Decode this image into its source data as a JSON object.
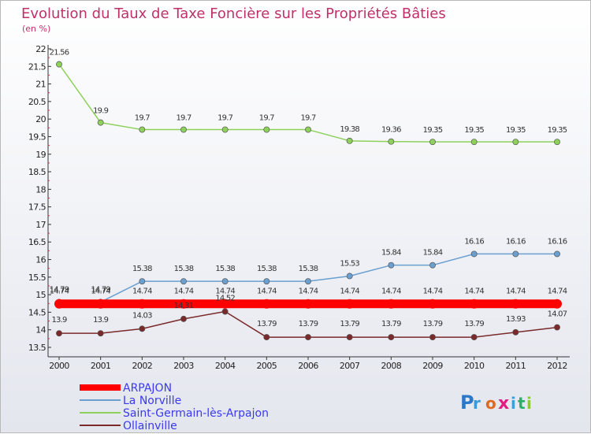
{
  "chart_data": {
    "type": "line",
    "title": "Evolution du Taux de Taxe Foncière sur les Propriétés Bâties",
    "subtitle": "(en %)",
    "xlabel": "",
    "ylabel": "",
    "x": [
      "2000",
      "2001",
      "2002",
      "2003",
      "2004",
      "2005",
      "2006",
      "2007",
      "2008",
      "2009",
      "2010",
      "2011",
      "2012"
    ],
    "ylim": [
      13.5,
      22
    ],
    "yticks": [
      "13.5",
      "14",
      "14.5",
      "15",
      "15.5",
      "16",
      "16.5",
      "17",
      "17.5",
      "18",
      "18.5",
      "19",
      "19.5",
      "20",
      "20.5",
      "21",
      "21.5",
      "22"
    ],
    "series": [
      {
        "name": "ARPAJON",
        "color": "#ff0000",
        "values": [
          14.74,
          14.74,
          14.74,
          14.74,
          14.74,
          14.74,
          14.74,
          14.74,
          14.74,
          14.74,
          14.74,
          14.74,
          14.74
        ],
        "labels": [
          "14.74",
          "14.74",
          "14.74",
          "14.74",
          "14.74",
          "14.74",
          "14.74",
          "14.74",
          "14.74",
          "14.74",
          "14.74",
          "14.74",
          "14.74"
        ]
      },
      {
        "name": "La Norville",
        "color": "#6a9fd0",
        "values": [
          14.79,
          14.79,
          15.38,
          15.38,
          15.38,
          15.38,
          15.38,
          15.53,
          15.84,
          15.84,
          16.16,
          16.16,
          16.16
        ],
        "labels": [
          "14.79",
          "14.79",
          "15.38",
          "15.38",
          "15.38",
          "15.38",
          "15.38",
          "15.53",
          "15.84",
          "15.84",
          "16.16",
          "16.16",
          "16.16"
        ]
      },
      {
        "name": "Saint-Germain-lès-Arpajon",
        "color": "#8ed15a",
        "values": [
          21.56,
          19.9,
          19.7,
          19.7,
          19.7,
          19.7,
          19.7,
          19.38,
          19.36,
          19.35,
          19.35,
          19.35,
          19.35
        ],
        "labels": [
          "21.56",
          "19.9",
          "19.7",
          "19.7",
          "19.7",
          "19.7",
          "19.7",
          "19.38",
          "19.36",
          "19.35",
          "19.35",
          "19.35",
          "19.35"
        ]
      },
      {
        "name": "Ollainville",
        "color": "#7a2a2a",
        "values": [
          13.9,
          13.9,
          14.03,
          14.31,
          14.52,
          13.79,
          13.79,
          13.79,
          13.79,
          13.79,
          13.79,
          13.93,
          14.07
        ],
        "labels": [
          "13.9",
          "13.9",
          "14.03",
          "14.31",
          "14.52",
          "13.79",
          "13.79",
          "13.79",
          "13.79",
          "13.79",
          "13.79",
          "13.93",
          "14.07"
        ]
      }
    ],
    "legend": {
      "position": "bottom-left",
      "entries": [
        "ARPAJON",
        "La Norville",
        "Saint-Germain-lès-Arpajon",
        "Ollainville"
      ]
    },
    "grid": false
  },
  "logo": {
    "text": "Proxiti"
  }
}
